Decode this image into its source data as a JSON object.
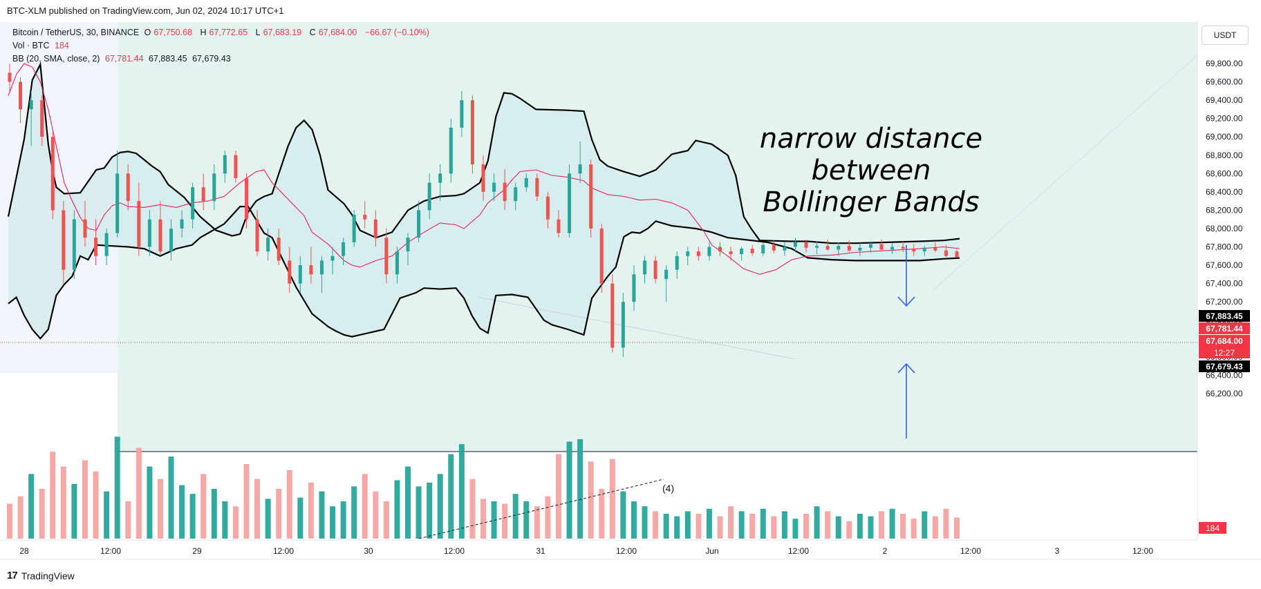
{
  "header": {
    "published_text": "BTC-XLM published on TradingView.com, Jun 02, 2024 10:17 UTC+1"
  },
  "legend": {
    "symbol": "Bitcoin / TetherUS, 30, BINANCE",
    "o_label": "O",
    "o": "67,750.68",
    "h_label": "H",
    "h": "67,772.65",
    "l_label": "L",
    "l": "67,683.19",
    "c_label": "C",
    "c": "67,684.00",
    "change": "−66.67 (−0.10%)",
    "vol_label": "Vol · BTC",
    "vol": "184",
    "bb_label": "BB (20, SMA, close, 2)",
    "bb_basis": "67,781.44",
    "bb_upper": "67,883.45",
    "bb_lower": "67,679.43"
  },
  "currency": "USDT",
  "price_tags": {
    "upper": "67,883.45",
    "basis": "67,781.44",
    "last": "67,684.00",
    "countdown": "12:27",
    "lower": "67,679.43",
    "volume": "184"
  },
  "annotation": {
    "line1": "narrow distance",
    "line2": "between",
    "line3": "Bollinger Bands"
  },
  "wave_label": "(4)",
  "footer": {
    "logo": "17",
    "brand": "TradingView"
  },
  "colors": {
    "up": "#26a69a",
    "down": "#ef5350",
    "up_vol": "#26a69a",
    "down_vol": "#f4a3a0",
    "basis": "#e91e63",
    "band": "#000000",
    "fill": "#d6ecec",
    "range_fill": "#e4f2f0",
    "arrow": "#2962ff",
    "label_red": "#f23645"
  },
  "chart_data": {
    "type": "candlestick",
    "title": "Bitcoin / TetherUS, 30, BINANCE",
    "x_tick_labels": [
      "28",
      "12:00",
      "29",
      "12:00",
      "30",
      "12:00",
      "31",
      "12:00",
      "Jun",
      "12:00",
      "2",
      "12:00",
      "3",
      "12:00"
    ],
    "y_tick_labels": [
      "69,800.00",
      "69,600.00",
      "69,400.00",
      "69,200.00",
      "69,000.00",
      "68,800.00",
      "68,600.00",
      "68,400.00",
      "68,200.00",
      "68,000.00",
      "67,800.00",
      "67,600.00",
      "67,400.00",
      "67,200.00",
      "67,000.00",
      "66,800.00",
      "66,600.00",
      "66,400.00",
      "66,200.00"
    ],
    "ylim": [
      66200,
      69960
    ],
    "bollinger_upper": [
      [
        0,
        68130
      ],
      [
        4,
        68980
      ],
      [
        5,
        69300
      ],
      [
        6,
        69620
      ],
      [
        8,
        69790
      ],
      [
        10,
        68920
      ],
      [
        11,
        68650
      ],
      [
        12,
        68450
      ],
      [
        14,
        68380
      ],
      [
        18,
        68390
      ],
      [
        22,
        68640
      ],
      [
        24,
        68660
      ],
      [
        26,
        68780
      ],
      [
        28,
        68830
      ],
      [
        30,
        68840
      ],
      [
        32,
        68820
      ],
      [
        34,
        68750
      ],
      [
        36,
        68680
      ],
      [
        38,
        68620
      ],
      [
        40,
        68480
      ],
      [
        44,
        68340
      ],
      [
        48,
        68130
      ],
      [
        52,
        67980
      ],
      [
        56,
        67920
      ],
      [
        58,
        67940
      ],
      [
        60,
        68180
      ],
      [
        62,
        68300
      ],
      [
        64,
        68350
      ],
      [
        66,
        68380
      ],
      [
        70,
        68900
      ],
      [
        72,
        69100
      ],
      [
        74,
        69180
      ],
      [
        76,
        69080
      ],
      [
        78,
        68800
      ],
      [
        80,
        68420
      ],
      [
        84,
        68270
      ],
      [
        86,
        68150
      ],
      [
        88,
        67980
      ],
      [
        92,
        67900
      ],
      [
        96,
        67960
      ],
      [
        100,
        68200
      ],
      [
        104,
        68300
      ],
      [
        108,
        68350
      ],
      [
        112,
        68360
      ],
      [
        114,
        68380
      ],
      [
        118,
        68500
      ],
      [
        120,
        68740
      ],
      [
        122,
        69220
      ],
      [
        124,
        69480
      ],
      [
        126,
        69470
      ],
      [
        128,
        69420
      ],
      [
        132,
        69300
      ],
      [
        140,
        69290
      ],
      [
        144,
        69280
      ],
      [
        146,
        68970
      ],
      [
        148,
        68750
      ],
      [
        150,
        68680
      ],
      [
        154,
        68620
      ],
      [
        158,
        68570
      ],
      [
        162,
        68640
      ],
      [
        166,
        68810
      ],
      [
        170,
        68850
      ],
      [
        172,
        68960
      ],
      [
        176,
        68920
      ],
      [
        180,
        68800
      ],
      [
        182,
        68580
      ],
      [
        184,
        68130
      ],
      [
        186,
        67990
      ],
      [
        188,
        67870
      ],
      [
        196,
        67860
      ],
      [
        200,
        67860
      ],
      [
        206,
        67840
      ],
      [
        212,
        67840
      ],
      [
        220,
        67850
      ],
      [
        228,
        67860
      ],
      [
        234,
        67870
      ],
      [
        238,
        67890
      ]
    ],
    "bollinger_basis": [
      [
        0,
        69450
      ],
      [
        2,
        69680
      ],
      [
        4,
        69800
      ],
      [
        6,
        69760
      ],
      [
        8,
        69600
      ],
      [
        10,
        69300
      ],
      [
        12,
        68900
      ],
      [
        14,
        68500
      ],
      [
        16,
        68300
      ],
      [
        18,
        68120
      ],
      [
        20,
        68000
      ],
      [
        22,
        67980
      ],
      [
        24,
        68150
      ],
      [
        26,
        68250
      ],
      [
        28,
        68280
      ],
      [
        30,
        68240
      ],
      [
        34,
        68230
      ],
      [
        38,
        68260
      ],
      [
        42,
        68230
      ],
      [
        46,
        68280
      ],
      [
        50,
        68300
      ],
      [
        54,
        68350
      ],
      [
        58,
        68500
      ],
      [
        62,
        68620
      ],
      [
        64,
        68640
      ],
      [
        66,
        68500
      ],
      [
        70,
        68320
      ],
      [
        74,
        68140
      ],
      [
        76,
        67960
      ],
      [
        80,
        67830
      ],
      [
        84,
        67650
      ],
      [
        86,
        67600
      ],
      [
        88,
        67580
      ],
      [
        92,
        67650
      ],
      [
        96,
        67700
      ],
      [
        100,
        67850
      ],
      [
        104,
        67960
      ],
      [
        108,
        68060
      ],
      [
        112,
        68040
      ],
      [
        114,
        68000
      ],
      [
        118,
        68150
      ],
      [
        120,
        68280
      ],
      [
        124,
        68420
      ],
      [
        126,
        68530
      ],
      [
        128,
        68620
      ],
      [
        132,
        68640
      ],
      [
        136,
        68580
      ],
      [
        140,
        68560
      ],
      [
        144,
        68520
      ],
      [
        146,
        68440
      ],
      [
        150,
        68370
      ],
      [
        154,
        68350
      ],
      [
        158,
        68310
      ],
      [
        162,
        68320
      ],
      [
        166,
        68280
      ],
      [
        170,
        68200
      ],
      [
        174,
        67970
      ],
      [
        176,
        67820
      ],
      [
        180,
        67700
      ],
      [
        184,
        67560
      ],
      [
        188,
        67500
      ],
      [
        192,
        67550
      ],
      [
        196,
        67660
      ],
      [
        200,
        67700
      ],
      [
        206,
        67710
      ],
      [
        212,
        67740
      ],
      [
        220,
        67760
      ],
      [
        228,
        67780
      ],
      [
        234,
        67800
      ],
      [
        238,
        67781
      ]
    ],
    "bollinger_lower": [
      [
        0,
        67180
      ],
      [
        2,
        67250
      ],
      [
        4,
        67050
      ],
      [
        6,
        66900
      ],
      [
        8,
        66800
      ],
      [
        10,
        66900
      ],
      [
        12,
        67270
      ],
      [
        14,
        67390
      ],
      [
        16,
        67480
      ],
      [
        18,
        67700
      ],
      [
        20,
        67660
      ],
      [
        22,
        67820
      ],
      [
        26,
        67810
      ],
      [
        30,
        67800
      ],
      [
        34,
        67780
      ],
      [
        38,
        67700
      ],
      [
        42,
        67780
      ],
      [
        46,
        67820
      ],
      [
        48,
        67900
      ],
      [
        50,
        67950
      ],
      [
        54,
        68050
      ],
      [
        58,
        68240
      ],
      [
        60,
        68240
      ],
      [
        64,
        67950
      ],
      [
        66,
        67900
      ],
      [
        68,
        67720
      ],
      [
        72,
        67360
      ],
      [
        76,
        67070
      ],
      [
        80,
        66930
      ],
      [
        82,
        66880
      ],
      [
        84,
        66840
      ],
      [
        86,
        66820
      ],
      [
        90,
        66860
      ],
      [
        94,
        66900
      ],
      [
        98,
        67240
      ],
      [
        102,
        67300
      ],
      [
        104,
        67350
      ],
      [
        108,
        67340
      ],
      [
        112,
        67350
      ],
      [
        114,
        67240
      ],
      [
        116,
        67050
      ],
      [
        118,
        66910
      ],
      [
        120,
        66860
      ],
      [
        122,
        67270
      ],
      [
        126,
        67280
      ],
      [
        130,
        67250
      ],
      [
        134,
        67000
      ],
      [
        136,
        66950
      ],
      [
        140,
        66900
      ],
      [
        144,
        66840
      ],
      [
        146,
        67240
      ],
      [
        150,
        67480
      ],
      [
        152,
        67580
      ],
      [
        154,
        67910
      ],
      [
        156,
        67960
      ],
      [
        158,
        67950
      ],
      [
        160,
        68000
      ],
      [
        162,
        68080
      ],
      [
        166,
        68030
      ],
      [
        168,
        68020
      ],
      [
        172,
        68000
      ],
      [
        176,
        67960
      ],
      [
        180,
        67900
      ],
      [
        184,
        67880
      ],
      [
        190,
        67850
      ],
      [
        196,
        67780
      ],
      [
        200,
        67680
      ],
      [
        206,
        67660
      ],
      [
        212,
        67650
      ],
      [
        220,
        67650
      ],
      [
        228,
        67650
      ],
      [
        234,
        67670
      ],
      [
        238,
        67679
      ]
    ],
    "candles_ohlc": [
      [
        69700,
        69800,
        69500,
        69600
      ],
      [
        69600,
        69650,
        69150,
        69300
      ],
      [
        69300,
        69500,
        68900,
        69400
      ],
      [
        69400,
        69450,
        68900,
        69000
      ],
      [
        69000,
        69050,
        68100,
        68200
      ],
      [
        68200,
        68300,
        67400,
        67550
      ],
      [
        67550,
        68200,
        67450,
        68100
      ],
      [
        68100,
        68300,
        67800,
        67900
      ],
      [
        67900,
        68100,
        67600,
        67700
      ],
      [
        67700,
        68000,
        67600,
        67950
      ],
      [
        67950,
        68850,
        67900,
        68600
      ],
      [
        68600,
        68700,
        68200,
        68300
      ],
      [
        68300,
        68500,
        67700,
        67800
      ],
      [
        67800,
        68200,
        67700,
        68100
      ],
      [
        68100,
        68300,
        67700,
        67750
      ],
      [
        67750,
        68100,
        67650,
        68000
      ],
      [
        68000,
        68200,
        67900,
        68100
      ],
      [
        68100,
        68500,
        68000,
        68450
      ],
      [
        68450,
        68600,
        68200,
        68300
      ],
      [
        68300,
        68700,
        68200,
        68600
      ],
      [
        68600,
        68850,
        68500,
        68800
      ],
      [
        68800,
        68850,
        68500,
        68550
      ],
      [
        68550,
        68600,
        68000,
        68100
      ],
      [
        68100,
        68200,
        67700,
        67750
      ],
      [
        67750,
        68000,
        67650,
        67900
      ],
      [
        67900,
        68000,
        67600,
        67650
      ],
      [
        67650,
        67800,
        67300,
        67400
      ],
      [
        67400,
        67700,
        67300,
        67600
      ],
      [
        67600,
        67800,
        67400,
        67500
      ],
      [
        67500,
        67700,
        67300,
        67650
      ],
      [
        67650,
        67800,
        67500,
        67700
      ],
      [
        67700,
        67900,
        67600,
        67850
      ],
      [
        67850,
        68200,
        67800,
        68150
      ],
      [
        68150,
        68300,
        68000,
        68100
      ],
      [
        68100,
        68200,
        67800,
        67900
      ],
      [
        67900,
        68000,
        67400,
        67500
      ],
      [
        67500,
        67800,
        67400,
        67750
      ],
      [
        67750,
        67950,
        67600,
        67900
      ],
      [
        67900,
        68300,
        67850,
        68200
      ],
      [
        68200,
        68600,
        68100,
        68500
      ],
      [
        68500,
        68700,
        68300,
        68600
      ],
      [
        68600,
        69200,
        68500,
        69100
      ],
      [
        69100,
        69500,
        69000,
        69400
      ],
      [
        69400,
        69450,
        68600,
        68700
      ],
      [
        68700,
        68800,
        68300,
        68400
      ],
      [
        68400,
        68600,
        68300,
        68500
      ],
      [
        68500,
        68650,
        68200,
        68300
      ],
      [
        68300,
        68500,
        68200,
        68450
      ],
      [
        68450,
        68600,
        68400,
        68550
      ],
      [
        68550,
        68600,
        68300,
        68350
      ],
      [
        68350,
        68400,
        68000,
        68100
      ],
      [
        68100,
        68200,
        67900,
        67950
      ],
      [
        67950,
        68700,
        67900,
        68600
      ],
      [
        68600,
        68950,
        68500,
        68700
      ],
      [
        68700,
        68750,
        67900,
        68000
      ],
      [
        68000,
        68050,
        67300,
        67400
      ],
      [
        67400,
        67500,
        66650,
        66700
      ],
      [
        66700,
        67300,
        66600,
        67200
      ],
      [
        67200,
        67600,
        67100,
        67500
      ],
      [
        67500,
        67700,
        67400,
        67650
      ],
      [
        67650,
        67700,
        67400,
        67450
      ],
      [
        67450,
        67600,
        67200,
        67550
      ],
      [
        67550,
        67750,
        67450,
        67700
      ],
      [
        67700,
        67800,
        67600,
        67750
      ],
      [
        67750,
        67800,
        67650,
        67700
      ],
      [
        67700,
        67850,
        67650,
        67800
      ],
      [
        67800,
        67850,
        67700,
        67750
      ],
      [
        67750,
        67800,
        67650,
        67720
      ],
      [
        67720,
        67800,
        67650,
        67780
      ],
      [
        67780,
        67820,
        67700,
        67730
      ],
      [
        67730,
        67850,
        67700,
        67820
      ],
      [
        67820,
        67870,
        67730,
        67760
      ],
      [
        67760,
        67850,
        67700,
        67800
      ],
      [
        67800,
        67900,
        67750,
        67850
      ],
      [
        67850,
        67880,
        67740,
        67790
      ],
      [
        67790,
        67860,
        67720,
        67810
      ],
      [
        67810,
        67880,
        67760,
        67770
      ],
      [
        67770,
        67850,
        67700,
        67810
      ],
      [
        67810,
        67870,
        67740,
        67760
      ],
      [
        67760,
        67840,
        67700,
        67790
      ],
      [
        67790,
        67860,
        67740,
        67830
      ],
      [
        67830,
        67880,
        67760,
        67770
      ],
      [
        67770,
        67840,
        67720,
        67800
      ],
      [
        67800,
        67860,
        67740,
        67780
      ],
      [
        67780,
        67830,
        67700,
        67750
      ],
      [
        67750,
        67810,
        67700,
        67790
      ],
      [
        67790,
        67850,
        67740,
        67760
      ],
      [
        67760,
        67820,
        67690,
        67700
      ],
      [
        67750,
        67773,
        67683,
        67684
      ]
    ],
    "volume_bars": [
      28,
      34,
      52,
      40,
      70,
      58,
      44,
      63,
      54,
      38,
      82,
      30,
      73,
      58,
      48,
      66,
      43,
      36,
      52,
      40,
      30,
      26,
      60,
      48,
      32,
      40,
      55,
      33,
      45,
      38,
      26,
      30,
      42,
      52,
      38,
      30,
      47,
      58,
      42,
      45,
      52,
      68,
      76,
      48,
      32,
      30,
      28,
      36,
      30,
      26,
      34,
      68,
      78,
      80,
      62,
      40,
      64,
      38,
      30,
      26,
      22,
      20,
      18,
      22,
      20,
      24,
      18,
      26,
      22,
      20,
      24,
      18,
      22,
      16,
      20,
      26,
      22,
      18,
      14,
      20,
      18,
      22,
      24,
      20,
      16,
      22,
      18,
      24,
      17
    ]
  }
}
